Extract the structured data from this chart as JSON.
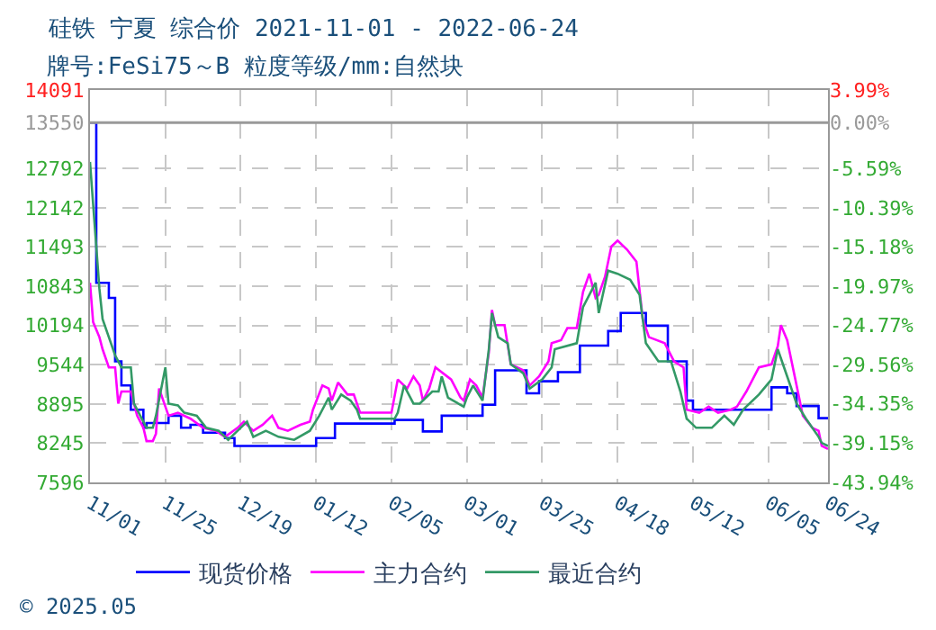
{
  "chart_data": {
    "type": "line",
    "title": "硅铁 宁夏 综合价 2021-11-01 - 2022-06-24",
    "subtitle": "牌号:FeSi75～B 粒度等级/mm:自然块",
    "annotations": [
      "© 2025.05"
    ],
    "xlim": [
      "2021-11-01",
      "2022-06-24"
    ],
    "xticks": [
      {
        "value": "2021-11-01",
        "label": "11/01"
      },
      {
        "value": "2021-11-25",
        "label": "11/25"
      },
      {
        "value": "2021-12-19",
        "label": "12/19"
      },
      {
        "value": "2022-01-12",
        "label": "01/12"
      },
      {
        "value": "2022-02-05",
        "label": "02/05"
      },
      {
        "value": "2022-03-01",
        "label": "03/01"
      },
      {
        "value": "2022-03-25",
        "label": "03/25"
      },
      {
        "value": "2022-04-18",
        "label": "04/18"
      },
      {
        "value": "2022-05-12",
        "label": "05/12"
      },
      {
        "value": "2022-06-05",
        "label": "06/05"
      },
      {
        "value": "2022-06-24",
        "label": "06/24"
      }
    ],
    "ylim": [
      7596,
      14091
    ],
    "yticks": [
      7596,
      8245,
      8895,
      9544,
      10194,
      10843,
      11493,
      12142,
      12792,
      13550,
      14091
    ],
    "y2lim": [
      -43.94,
      3.99
    ],
    "y2ticks": [
      {
        "value": -43.94,
        "label": "-43.94%"
      },
      {
        "value": -39.15,
        "label": "-39.15%"
      },
      {
        "value": -34.35,
        "label": "-34.35%"
      },
      {
        "value": -29.56,
        "label": "-29.56%"
      },
      {
        "value": -24.77,
        "label": "-24.77%"
      },
      {
        "value": -19.97,
        "label": "-19.97%"
      },
      {
        "value": -15.18,
        "label": "-15.18%"
      },
      {
        "value": -10.39,
        "label": "-10.39%"
      },
      {
        "value": -5.59,
        "label": "-5.59%"
      },
      {
        "value": 0,
        "label": "0.00%"
      },
      {
        "value": 3.99,
        "label": "3.99%"
      }
    ],
    "ref_lines": [
      {
        "axis": "y",
        "value": 13550,
        "color": "#999999"
      }
    ],
    "grid": true,
    "legend": "bottom",
    "series": [
      {
        "name": "现货价格",
        "type": "step",
        "color": "#0000ff",
        "x": [
          "2021-11-01",
          "2021-11-03",
          "2021-11-07",
          "2021-11-09",
          "2021-11-11",
          "2021-11-14",
          "2021-11-18",
          "2021-11-19",
          "2021-11-26",
          "2021-11-30",
          "2021-12-03",
          "2021-12-07",
          "2021-12-14",
          "2021-12-17",
          "2022-01-12",
          "2022-01-18",
          "2022-02-06",
          "2022-02-15",
          "2022-02-21",
          "2022-03-06",
          "2022-03-10",
          "2022-03-20",
          "2022-03-24",
          "2022-03-30",
          "2022-04-06",
          "2022-04-15",
          "2022-04-19",
          "2022-04-27",
          "2022-05-04",
          "2022-05-10",
          "2022-05-12",
          "2022-06-06",
          "2022-06-11",
          "2022-06-14",
          "2022-06-21",
          "2022-06-24"
        ],
        "values": [
          13550,
          10900,
          10650,
          9600,
          9200,
          8800,
          8500,
          8580,
          8700,
          8500,
          8550,
          8420,
          8330,
          8200,
          8330,
          8570,
          8630,
          8440,
          8700,
          8880,
          9450,
          9070,
          9270,
          9420,
          9860,
          10100,
          10400,
          10190,
          9600,
          8950,
          8800,
          9170,
          9070,
          8860,
          8660,
          8660
        ]
      },
      {
        "name": "主力合约",
        "color": "#ff00ff",
        "x": [
          "2021-11-01",
          "2021-11-02",
          "2021-11-04",
          "2021-11-05",
          "2021-11-07",
          "2021-11-09",
          "2021-11-10",
          "2021-11-11",
          "2021-11-14",
          "2021-11-16",
          "2021-11-18",
          "2021-11-19",
          "2021-11-21",
          "2021-11-22",
          "2021-11-23",
          "2021-11-26",
          "2021-11-29",
          "2021-12-03",
          "2021-12-07",
          "2021-12-11",
          "2021-12-14",
          "2021-12-18",
          "2021-12-20",
          "2021-12-23",
          "2021-12-26",
          "2021-12-29",
          "2021-12-31",
          "2022-01-03",
          "2022-01-07",
          "2022-01-10",
          "2022-01-11",
          "2022-01-14",
          "2022-01-16",
          "2022-01-17",
          "2022-01-19",
          "2022-01-22",
          "2022-01-24",
          "2022-01-26",
          "2022-02-05",
          "2022-02-07",
          "2022-02-10",
          "2022-02-12",
          "2022-02-14",
          "2022-02-15",
          "2022-02-17",
          "2022-02-19",
          "2022-02-24",
          "2022-02-27",
          "2022-02-28",
          "2022-03-02",
          "2022-03-04",
          "2022-03-06",
          "2022-03-08",
          "2022-03-09",
          "2022-03-10",
          "2022-03-13",
          "2022-03-15",
          "2022-03-19",
          "2022-03-21",
          "2022-03-24",
          "2022-03-27",
          "2022-03-28",
          "2022-03-31",
          "2022-04-02",
          "2022-04-05",
          "2022-04-07",
          "2022-04-09",
          "2022-04-11",
          "2022-04-12",
          "2022-04-14",
          "2022-04-16",
          "2022-04-18",
          "2022-04-21",
          "2022-04-24",
          "2022-04-26",
          "2022-04-28",
          "2022-05-03",
          "2022-05-06",
          "2022-05-09",
          "2022-05-10",
          "2022-05-14",
          "2022-05-17",
          "2022-05-20",
          "2022-05-24",
          "2022-05-26",
          "2022-05-29",
          "2022-06-02",
          "2022-06-06",
          "2022-06-08",
          "2022-06-09",
          "2022-06-11",
          "2022-06-14",
          "2022-06-16",
          "2022-06-19",
          "2022-06-21",
          "2022-06-22",
          "2022-06-24"
        ],
        "values": [
          10900,
          10250,
          10000,
          9800,
          9500,
          9500,
          8900,
          9100,
          9100,
          8700,
          8500,
          8280,
          8280,
          8400,
          9150,
          8700,
          8750,
          8650,
          8500,
          8450,
          8350,
          8500,
          8600,
          8450,
          8550,
          8700,
          8500,
          8450,
          8550,
          8600,
          8800,
          9200,
          9150,
          8950,
          9250,
          9050,
          9050,
          8750,
          8750,
          9300,
          9150,
          9350,
          9200,
          8950,
          9150,
          9500,
          9300,
          9000,
          8950,
          9300,
          9200,
          9000,
          9750,
          10450,
          10200,
          10200,
          9550,
          9450,
          9200,
          9350,
          9600,
          9900,
          9950,
          10150,
          10150,
          10750,
          11050,
          10650,
          10700,
          11000,
          11500,
          11600,
          11450,
          11250,
          10300,
          10000,
          9900,
          9600,
          9500,
          8800,
          8750,
          8850,
          8750,
          8800,
          8850,
          9100,
          9500,
          9550,
          9850,
          10200,
          9950,
          9200,
          8700,
          8500,
          8450,
          8200,
          8150
        ]
      },
      {
        "name": "最近合约",
        "color": "#339966",
        "x": [
          "2021-11-01",
          "2021-11-02",
          "2021-11-03",
          "2021-11-04",
          "2021-11-05",
          "2021-11-07",
          "2021-11-09",
          "2021-11-11",
          "2021-11-14",
          "2021-11-15",
          "2021-11-17",
          "2021-11-19",
          "2021-11-21",
          "2021-11-22",
          "2021-11-25",
          "2021-11-26",
          "2021-11-29",
          "2021-12-01",
          "2021-12-05",
          "2021-12-08",
          "2021-12-12",
          "2021-12-15",
          "2021-12-18",
          "2021-12-21",
          "2021-12-23",
          "2021-12-27",
          "2021-12-31",
          "2022-01-05",
          "2022-01-10",
          "2022-01-13",
          "2022-01-16",
          "2022-01-17",
          "2022-01-20",
          "2022-01-23",
          "2022-01-25",
          "2022-01-26",
          "2022-02-06",
          "2022-02-07",
          "2022-02-09",
          "2022-02-12",
          "2022-02-14",
          "2022-02-18",
          "2022-02-20",
          "2022-02-21",
          "2022-02-23",
          "2022-02-28",
          "2022-03-01",
          "2022-03-03",
          "2022-03-06",
          "2022-03-08",
          "2022-03-09",
          "2022-03-11",
          "2022-03-14",
          "2022-03-15",
          "2022-03-19",
          "2022-03-21",
          "2022-03-25",
          "2022-03-28",
          "2022-03-29",
          "2022-04-05",
          "2022-04-07",
          "2022-04-11",
          "2022-04-12",
          "2022-04-15",
          "2022-04-18",
          "2022-04-22",
          "2022-04-25",
          "2022-04-27",
          "2022-05-01",
          "2022-05-05",
          "2022-05-08",
          "2022-05-10",
          "2022-05-13",
          "2022-05-18",
          "2022-05-22",
          "2022-05-25",
          "2022-05-28",
          "2022-06-02",
          "2022-06-06",
          "2022-06-08",
          "2022-06-11",
          "2022-06-14",
          "2022-06-17",
          "2022-06-21",
          "2022-06-22",
          "2022-06-24"
        ],
        "values": [
          12900,
          12200,
          11500,
          10800,
          10300,
          10000,
          9700,
          9500,
          9500,
          8900,
          8700,
          8500,
          8500,
          8700,
          9500,
          8900,
          8870,
          8750,
          8700,
          8500,
          8450,
          8300,
          8450,
          8600,
          8350,
          8450,
          8350,
          8300,
          8450,
          8700,
          9000,
          8800,
          9050,
          8950,
          8800,
          8650,
          8650,
          8750,
          9200,
          8900,
          8900,
          9100,
          9100,
          9350,
          9000,
          8850,
          9000,
          9200,
          8950,
          9800,
          10400,
          10000,
          9900,
          9550,
          9400,
          9150,
          9300,
          9500,
          9800,
          9900,
          10500,
          10900,
          10400,
          11100,
          11050,
          10950,
          10700,
          9900,
          9600,
          9600,
          9100,
          8650,
          8500,
          8500,
          8700,
          8550,
          8800,
          9050,
          9300,
          9800,
          9350,
          8900,
          8650,
          8350,
          8250,
          8200
        ]
      }
    ]
  }
}
